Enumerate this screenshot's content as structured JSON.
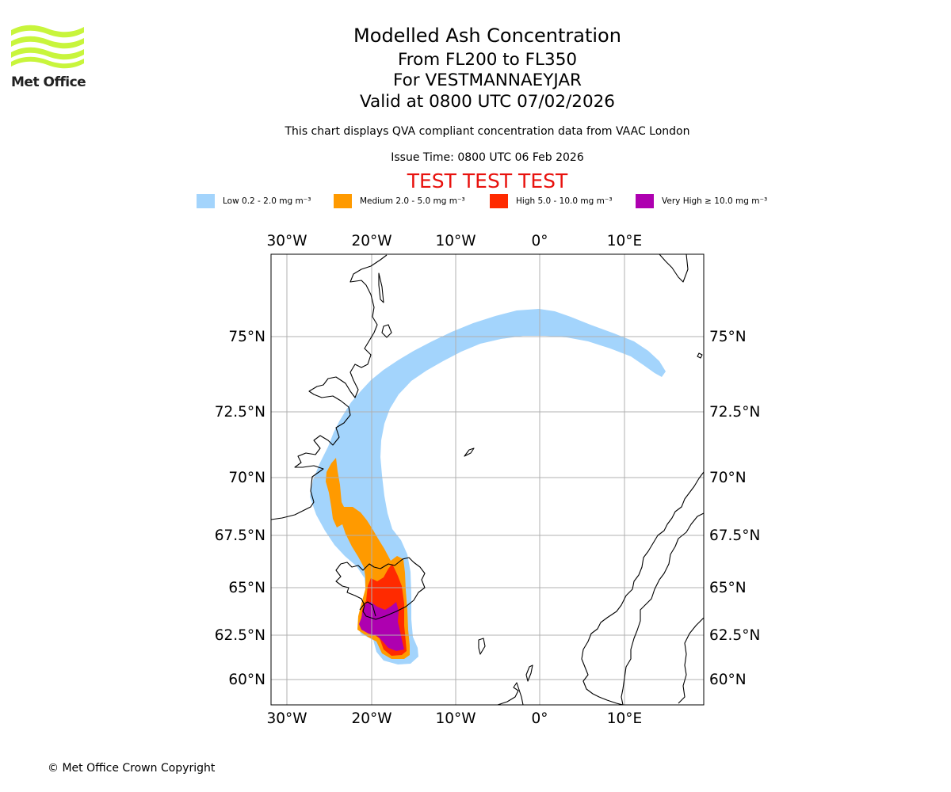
{
  "logo": {
    "name": "Met Office",
    "color": "#c8f53c"
  },
  "header": {
    "title": "Modelled Ash Concentration",
    "flight_levels": "From FL200 to FL350",
    "volcano": "For VESTMANNAEYJAR",
    "valid_time": "Valid at 0800 UTC 07/02/2026",
    "compliance_note": "This chart displays QVA compliant concentration data from VAAC London",
    "issue_time": "Issue Time: 0800 UTC 06 Feb 2026",
    "test_banner": "TEST TEST TEST"
  },
  "legend": [
    {
      "label": "Low 0.2 - 2.0 mg m⁻³",
      "color": "#a3d4fc"
    },
    {
      "label": "Medium 2.0 - 5.0 mg m⁻³",
      "color": "#ff9a00"
    },
    {
      "label": "High 5.0 - 10.0 mg m⁻³",
      "color": "#ff2a00"
    },
    {
      "label": "Very High  ≥  10.0 mg m⁻³",
      "color": "#ae00b0"
    }
  ],
  "map": {
    "longitude_ticks": [
      "30°W",
      "20°W",
      "10°W",
      "0°",
      "10°E"
    ],
    "latitude_ticks": [
      "75°N",
      "72.5°N",
      "70°N",
      "67.5°N",
      "65°N",
      "62.5°N",
      "60°N"
    ],
    "gridline_color": "#b0b0b0",
    "coastline_color": "#000000"
  },
  "footer": {
    "copyright": "© Met Office Crown Copyright"
  }
}
